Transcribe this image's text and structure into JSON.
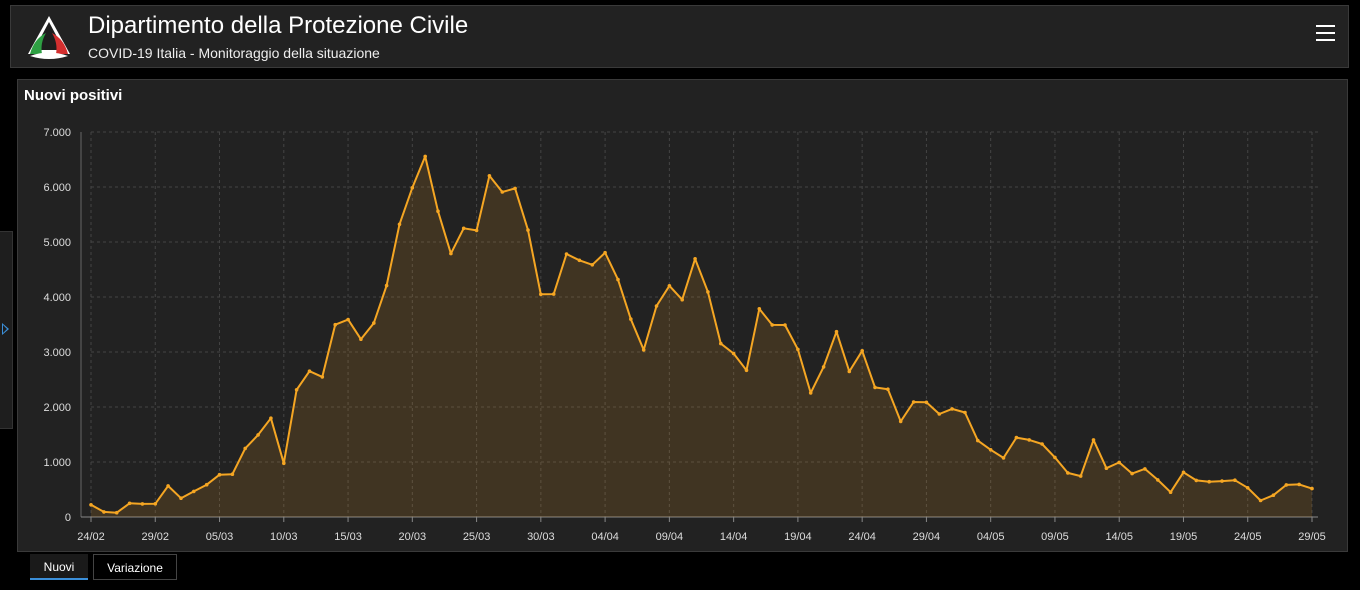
{
  "header": {
    "title": "Dipartimento della Protezione Civile",
    "subtitle": "COVID-19 Italia - Monitoraggio della situazione"
  },
  "panel": {
    "title": "Nuovi positivi"
  },
  "tabs": [
    {
      "label": "Nuovi",
      "active": true
    },
    {
      "label": "Variazione",
      "active": false
    }
  ],
  "colors": {
    "line": "#f5a623",
    "background": "#222222",
    "accent": "#3b8fd9"
  },
  "chart_data": {
    "type": "area",
    "title": "Nuovi positivi",
    "x_start": "24/02",
    "x_end": "29/05",
    "x_tick_labels": [
      "24/02",
      "29/02",
      "05/03",
      "10/03",
      "15/03",
      "20/03",
      "25/03",
      "30/03",
      "04/04",
      "09/04",
      "14/04",
      "19/04",
      "24/04",
      "29/04",
      "04/05",
      "09/05",
      "14/05",
      "19/05",
      "24/05",
      "29/05"
    ],
    "y_tick_labels": [
      "0",
      "1.000",
      "2.000",
      "3.000",
      "4.000",
      "5.000",
      "6.000",
      "7.000"
    ],
    "ylim": [
      0,
      7000
    ],
    "grid": true,
    "series": [
      {
        "values": [
          221,
          93,
          78,
          250,
          238,
          240,
          566,
          342,
          466,
          587,
          769,
          778,
          1247,
          1492,
          1797,
          977,
          2313,
          2651,
          2547,
          3497,
          3590,
          3233,
          3526,
          4207,
          5322,
          5986,
          6557,
          5560,
          4789,
          5249,
          5210,
          6203,
          5909,
          5974,
          5217,
          4050,
          4053,
          4782,
          4668,
          4585,
          4805,
          4316,
          3599,
          3039,
          3836,
          4204,
          3951,
          4694,
          4092,
          3153,
          2972,
          2667,
          3786,
          3493,
          3491,
          3047,
          2256,
          2729,
          3370,
          2646,
          3021,
          2357,
          2324,
          1739,
          2091,
          2086,
          1872,
          1965,
          1900,
          1389,
          1221,
          1075,
          1444,
          1401,
          1327,
          1083,
          802,
          744,
          1402,
          888,
          992,
          789,
          875,
          675,
          451,
          813,
          665,
          642,
          652,
          669,
          531,
          300,
          397,
          584,
          593,
          516
        ]
      }
    ]
  }
}
